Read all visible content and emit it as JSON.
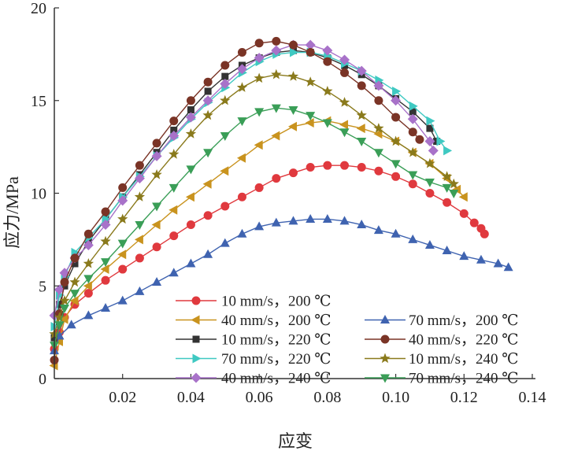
{
  "chart_data": {
    "type": "line",
    "title": "",
    "xlabel": "应变",
    "ylabel": "应力/MPa",
    "xlim": [
      0,
      0.14
    ],
    "ylim": [
      0,
      20
    ],
    "xticks": [
      0.02,
      0.04,
      0.06,
      0.08,
      0.1,
      0.12,
      0.14
    ],
    "xtick_labels": [
      "0.02",
      "0.04",
      "0.06",
      "0.08",
      "0.10",
      "0.12",
      "0.14"
    ],
    "yticks": [
      0,
      5,
      10,
      15,
      20
    ],
    "ytick_labels": [
      "0",
      "5",
      "10",
      "15",
      "20"
    ],
    "legend_position": "bottom-right",
    "series": [
      {
        "name": "10 mm/s，200 ℃",
        "color": "#e0393e",
        "marker": "circle",
        "points": [
          [
            0,
            1.6
          ],
          [
            0.0015,
            2.5
          ],
          [
            0.003,
            3.3
          ],
          [
            0.006,
            4
          ],
          [
            0.01,
            4.6
          ],
          [
            0.015,
            5.3
          ],
          [
            0.02,
            5.9
          ],
          [
            0.025,
            6.5
          ],
          [
            0.03,
            7.1
          ],
          [
            0.035,
            7.7
          ],
          [
            0.04,
            8.3
          ],
          [
            0.045,
            8.8
          ],
          [
            0.05,
            9.3
          ],
          [
            0.055,
            9.8
          ],
          [
            0.06,
            10.3
          ],
          [
            0.065,
            10.8
          ],
          [
            0.07,
            11.1
          ],
          [
            0.075,
            11.4
          ],
          [
            0.08,
            11.5
          ],
          [
            0.085,
            11.5
          ],
          [
            0.09,
            11.4
          ],
          [
            0.095,
            11.2
          ],
          [
            0.1,
            10.9
          ],
          [
            0.105,
            10.5
          ],
          [
            0.11,
            10.0
          ],
          [
            0.115,
            9.5
          ],
          [
            0.12,
            8.9
          ],
          [
            0.123,
            8.4
          ],
          [
            0.125,
            8.1
          ],
          [
            0.126,
            7.8
          ]
        ]
      },
      {
        "name": "40 mm/s，200 ℃",
        "color": "#c9931e",
        "marker": "triangle-left",
        "points": [
          [
            0,
            0.7
          ],
          [
            0.0015,
            2.0
          ],
          [
            0.003,
            3.2
          ],
          [
            0.006,
            4.2
          ],
          [
            0.01,
            5.0
          ],
          [
            0.015,
            5.9
          ],
          [
            0.02,
            6.7
          ],
          [
            0.025,
            7.5
          ],
          [
            0.03,
            8.3
          ],
          [
            0.035,
            9.1
          ],
          [
            0.04,
            9.8
          ],
          [
            0.045,
            10.5
          ],
          [
            0.05,
            11.2
          ],
          [
            0.055,
            11.9
          ],
          [
            0.06,
            12.6
          ],
          [
            0.065,
            13.1
          ],
          [
            0.07,
            13.6
          ],
          [
            0.075,
            13.8
          ],
          [
            0.08,
            13.9
          ],
          [
            0.085,
            13.7
          ],
          [
            0.09,
            13.5
          ],
          [
            0.095,
            13.2
          ],
          [
            0.1,
            12.8
          ],
          [
            0.105,
            12.2
          ],
          [
            0.11,
            11.6
          ],
          [
            0.115,
            10.8
          ],
          [
            0.118,
            10.2
          ],
          [
            0.12,
            9.8
          ]
        ]
      },
      {
        "name": "10 mm/s，220 ℃",
        "color": "#333333",
        "marker": "square",
        "points": [
          [
            0,
            2.2
          ],
          [
            0.0015,
            4.0
          ],
          [
            0.003,
            5.0
          ],
          [
            0.006,
            6.2
          ],
          [
            0.01,
            7.4
          ],
          [
            0.015,
            8.6
          ],
          [
            0.02,
            9.8
          ],
          [
            0.025,
            11.0
          ],
          [
            0.03,
            12.2
          ],
          [
            0.035,
            13.4
          ],
          [
            0.04,
            14.5
          ],
          [
            0.045,
            15.5
          ],
          [
            0.05,
            16.3
          ],
          [
            0.055,
            16.9
          ],
          [
            0.06,
            17.3
          ],
          [
            0.065,
            17.6
          ],
          [
            0.07,
            17.7
          ],
          [
            0.075,
            17.6
          ],
          [
            0.08,
            17.3
          ],
          [
            0.085,
            16.9
          ],
          [
            0.09,
            16.4
          ],
          [
            0.095,
            15.8
          ],
          [
            0.1,
            15.1
          ],
          [
            0.105,
            14.4
          ],
          [
            0.11,
            13.5
          ],
          [
            0.112,
            12.8
          ]
        ]
      },
      {
        "name": "70 mm/s，220 ℃",
        "color": "#3fc9c2",
        "marker": "triangle-right",
        "points": [
          [
            0,
            2.8
          ],
          [
            0.0015,
            4.5
          ],
          [
            0.003,
            5.5
          ],
          [
            0.006,
            6.8
          ],
          [
            0.01,
            7.6
          ],
          [
            0.015,
            8.6
          ],
          [
            0.02,
            9.8
          ],
          [
            0.025,
            10.9
          ],
          [
            0.03,
            12.0
          ],
          [
            0.035,
            13.0
          ],
          [
            0.04,
            14.0
          ],
          [
            0.045,
            14.9
          ],
          [
            0.05,
            15.7
          ],
          [
            0.055,
            16.5
          ],
          [
            0.06,
            17.1
          ],
          [
            0.065,
            17.5
          ],
          [
            0.07,
            17.6
          ],
          [
            0.075,
            17.6
          ],
          [
            0.08,
            17.4
          ],
          [
            0.085,
            17.0
          ],
          [
            0.09,
            16.6
          ],
          [
            0.095,
            16.1
          ],
          [
            0.1,
            15.5
          ],
          [
            0.105,
            14.7
          ],
          [
            0.11,
            13.9
          ],
          [
            0.113,
            12.8
          ],
          [
            0.115,
            12.3
          ]
        ]
      },
      {
        "name": "40 mm/s，240 ℃",
        "color": "#a872c9",
        "marker": "diamond",
        "points": [
          [
            0,
            3.4
          ],
          [
            0.0015,
            4.8
          ],
          [
            0.003,
            5.7
          ],
          [
            0.006,
            6.5
          ],
          [
            0.01,
            7.2
          ],
          [
            0.015,
            8.3
          ],
          [
            0.02,
            9.6
          ],
          [
            0.025,
            10.8
          ],
          [
            0.03,
            12.0
          ],
          [
            0.035,
            13.1
          ],
          [
            0.04,
            14.1
          ],
          [
            0.045,
            15.0
          ],
          [
            0.05,
            15.9
          ],
          [
            0.055,
            16.7
          ],
          [
            0.06,
            17.3
          ],
          [
            0.065,
            17.7
          ],
          [
            0.07,
            18.0
          ],
          [
            0.075,
            18.0
          ],
          [
            0.08,
            17.7
          ],
          [
            0.085,
            17.2
          ],
          [
            0.09,
            16.6
          ],
          [
            0.095,
            15.8
          ],
          [
            0.1,
            15.0
          ],
          [
            0.105,
            14.0
          ],
          [
            0.11,
            12.8
          ],
          [
            0.111,
            12.3
          ]
        ]
      },
      {
        "name": "70 mm/s，200 ℃",
        "color": "#3f63b0",
        "marker": "triangle-up",
        "points": [
          [
            0,
            1.5
          ],
          [
            0.0015,
            2.3
          ],
          [
            0.005,
            2.9
          ],
          [
            0.01,
            3.4
          ],
          [
            0.015,
            3.8
          ],
          [
            0.02,
            4.2
          ],
          [
            0.025,
            4.7
          ],
          [
            0.03,
            5.2
          ],
          [
            0.035,
            5.7
          ],
          [
            0.04,
            6.2
          ],
          [
            0.045,
            6.7
          ],
          [
            0.05,
            7.3
          ],
          [
            0.055,
            7.8
          ],
          [
            0.06,
            8.2
          ],
          [
            0.065,
            8.4
          ],
          [
            0.07,
            8.5
          ],
          [
            0.075,
            8.6
          ],
          [
            0.08,
            8.6
          ],
          [
            0.085,
            8.5
          ],
          [
            0.09,
            8.3
          ],
          [
            0.095,
            8.0
          ],
          [
            0.1,
            7.8
          ],
          [
            0.105,
            7.5
          ],
          [
            0.11,
            7.2
          ],
          [
            0.115,
            6.9
          ],
          [
            0.12,
            6.6
          ],
          [
            0.125,
            6.4
          ],
          [
            0.13,
            6.2
          ],
          [
            0.133,
            6.0
          ]
        ]
      },
      {
        "name": "40 mm/s，220 ℃",
        "color": "#7a3426",
        "marker": "circle",
        "points": [
          [
            0,
            1.0
          ],
          [
            0.0015,
            3.5
          ],
          [
            0.003,
            5.2
          ],
          [
            0.006,
            6.5
          ],
          [
            0.01,
            7.8
          ],
          [
            0.015,
            9.0
          ],
          [
            0.02,
            10.3
          ],
          [
            0.025,
            11.5
          ],
          [
            0.03,
            12.7
          ],
          [
            0.035,
            13.9
          ],
          [
            0.04,
            15.0
          ],
          [
            0.045,
            16.0
          ],
          [
            0.05,
            16.9
          ],
          [
            0.055,
            17.6
          ],
          [
            0.06,
            18.1
          ],
          [
            0.065,
            18.2
          ],
          [
            0.07,
            18.0
          ],
          [
            0.075,
            17.6
          ],
          [
            0.08,
            17.1
          ],
          [
            0.085,
            16.5
          ],
          [
            0.09,
            15.8
          ],
          [
            0.095,
            15.0
          ],
          [
            0.1,
            14.1
          ],
          [
            0.105,
            13.3
          ],
          [
            0.107,
            12.9
          ]
        ]
      },
      {
        "name": "10 mm/s，240 ℃",
        "color": "#8a7a1c",
        "marker": "star",
        "points": [
          [
            0,
            2.4
          ],
          [
            0.0015,
            3.3
          ],
          [
            0.003,
            4.2
          ],
          [
            0.006,
            5.2
          ],
          [
            0.01,
            6.2
          ],
          [
            0.015,
            7.4
          ],
          [
            0.02,
            8.6
          ],
          [
            0.025,
            9.8
          ],
          [
            0.03,
            11.0
          ],
          [
            0.035,
            12.1
          ],
          [
            0.04,
            13.2
          ],
          [
            0.045,
            14.2
          ],
          [
            0.05,
            15.0
          ],
          [
            0.055,
            15.7
          ],
          [
            0.06,
            16.2
          ],
          [
            0.065,
            16.4
          ],
          [
            0.07,
            16.3
          ],
          [
            0.075,
            16.0
          ],
          [
            0.08,
            15.5
          ],
          [
            0.085,
            14.9
          ],
          [
            0.09,
            14.2
          ],
          [
            0.095,
            13.5
          ],
          [
            0.1,
            12.8
          ],
          [
            0.105,
            12.2
          ],
          [
            0.11,
            11.6
          ],
          [
            0.115,
            10.9
          ],
          [
            0.117,
            10.5
          ]
        ]
      },
      {
        "name": "70 mm/s，240 ℃",
        "color": "#3a9e57",
        "marker": "triangle-down",
        "points": [
          [
            0,
            1.8
          ],
          [
            0.0015,
            2.9
          ],
          [
            0.003,
            3.8
          ],
          [
            0.006,
            4.6
          ],
          [
            0.01,
            5.4
          ],
          [
            0.015,
            6.3
          ],
          [
            0.02,
            7.3
          ],
          [
            0.025,
            8.3
          ],
          [
            0.03,
            9.3
          ],
          [
            0.035,
            10.3
          ],
          [
            0.04,
            11.3
          ],
          [
            0.045,
            12.2
          ],
          [
            0.05,
            13.1
          ],
          [
            0.055,
            13.9
          ],
          [
            0.06,
            14.4
          ],
          [
            0.065,
            14.6
          ],
          [
            0.07,
            14.5
          ],
          [
            0.075,
            14.2
          ],
          [
            0.08,
            13.8
          ],
          [
            0.085,
            13.3
          ],
          [
            0.09,
            12.8
          ],
          [
            0.095,
            12.2
          ],
          [
            0.1,
            11.6
          ],
          [
            0.105,
            11.0
          ],
          [
            0.11,
            10.6
          ],
          [
            0.115,
            10.3
          ],
          [
            0.117,
            10.0
          ]
        ]
      }
    ]
  }
}
